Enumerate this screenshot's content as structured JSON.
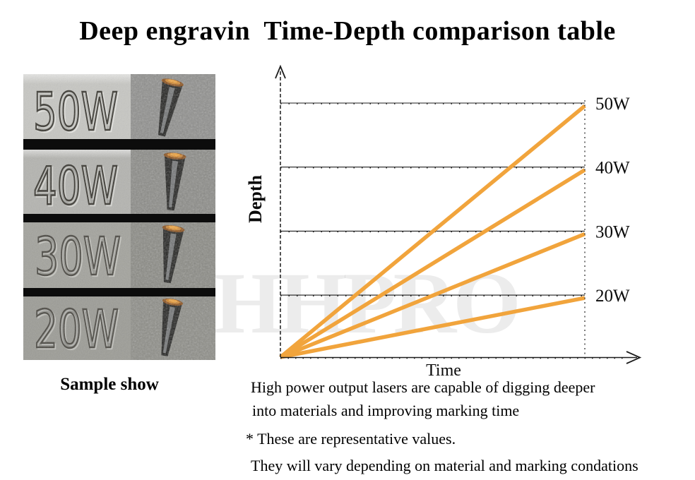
{
  "title": "Deep engravin  Time-Depth comparison table",
  "watermark": "HHPRO",
  "sample": {
    "caption": "Sample show",
    "rows": [
      {
        "label": "50W"
      },
      {
        "label": "40W"
      },
      {
        "label": "30W"
      },
      {
        "label": "20W"
      }
    ]
  },
  "chart": {
    "xlabel": "Time",
    "ylabel": "Depth",
    "accent_color": "#F1A43C",
    "axis_color": "#1c1c1c"
  },
  "chart_data": {
    "type": "line",
    "title": "Deep engravin  Time-Depth comparison table",
    "xlabel": "Time",
    "ylabel": "Depth",
    "series": [
      {
        "name": "50W",
        "x": [
          0,
          1
        ],
        "y": [
          0,
          50
        ]
      },
      {
        "name": "40W",
        "x": [
          0,
          1
        ],
        "y": [
          0,
          40
        ]
      },
      {
        "name": "30W",
        "x": [
          0,
          1
        ],
        "y": [
          0,
          30
        ]
      },
      {
        "name": "20W",
        "x": [
          0,
          1
        ],
        "y": [
          0,
          20
        ]
      }
    ],
    "axis_ranges": {
      "x": "unlabeled (relative time)",
      "y": "unlabeled (relative depth)"
    },
    "grid": "one horizontal reference line at each series end depth, evenly spaced (stylized, not to numeric scale)",
    "legend_position": "right, each line labeled at its end (50W, 40W, 30W, 20W)",
    "line_style": "straight lines fanning from origin to a dotted vertical end boundary"
  },
  "annotations": {
    "line1": "High power output lasers are capable of digging deeper",
    "line2": "into materials and improving marking time",
    "line3": "* These are representative values.",
    "line4": "They will vary depending on material and marking condations"
  }
}
